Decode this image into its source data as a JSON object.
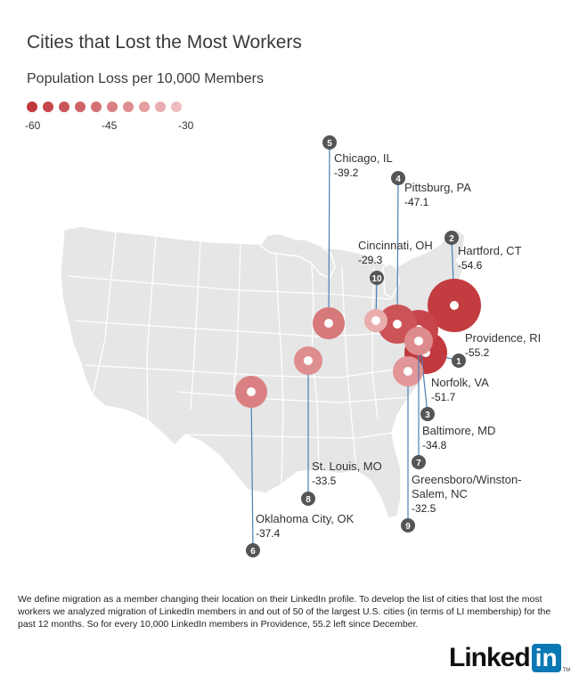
{
  "title": "Cities that Lost the Most Workers",
  "subtitle": "Population Loss per 10,000 Members",
  "legend": {
    "labels": [
      "-60",
      "-45",
      "-30"
    ],
    "colors": [
      "#c0393d",
      "#c5474b",
      "#ca5559",
      "#cf6366",
      "#d47174",
      "#d98082",
      "#df8f91",
      "#e49ea0",
      "#e9adaf",
      "#efbcbd"
    ]
  },
  "cities": [
    {
      "rank": "1",
      "name": "Providence, RI",
      "value": "-55.2",
      "loss": -55.2,
      "color": "#c23a3e"
    },
    {
      "rank": "2",
      "name": "Hartford, CT",
      "value": "-54.6",
      "loss": -54.6,
      "color": "#c33c40"
    },
    {
      "rank": "3",
      "name": "Norfolk, VA",
      "value": "-51.7",
      "loss": -51.7,
      "color": "#c7454a"
    },
    {
      "rank": "4",
      "name": "Pittsburg, PA",
      "value": "-47.1",
      "loss": -47.1,
      "color": "#cc5356"
    },
    {
      "rank": "5",
      "name": "Chicago, IL",
      "value": "-39.2",
      "loss": -39.2,
      "color": "#d7797b"
    },
    {
      "rank": "6",
      "name": "Oklahoma City, OK",
      "value": "-37.4",
      "loss": -37.4,
      "color": "#da8082"
    },
    {
      "rank": "7",
      "name": "Baltimore, MD",
      "value": "-34.8",
      "loss": -34.8,
      "color": "#de8b8d"
    },
    {
      "rank": "8",
      "name": "St. Louis, MO",
      "value": "-33.5",
      "loss": -33.5,
      "color": "#df8e90"
    },
    {
      "rank": "9",
      "name": "Greensboro/Winston-Salem, NC",
      "value": "-32.5",
      "loss": -32.5,
      "color": "#e29698"
    },
    {
      "rank": "10",
      "name": "Cincinnati, OH",
      "value": "-29.3",
      "loss": -29.3,
      "color": "#e9adae"
    }
  ],
  "footnote": "We define migration as a member changing their location on their LinkedIn profile. To develop the list of cities that lost the most workers we analyzed migration of LinkedIn members in and out of 50 of the largest U.S. cities (in terms of LI membership) for the past 12 months. So for every 10,000 LinkedIn members in Providence, 55.2 left since December.",
  "logo": {
    "word": "Linked",
    "box": "in",
    "tm": "TM"
  }
}
